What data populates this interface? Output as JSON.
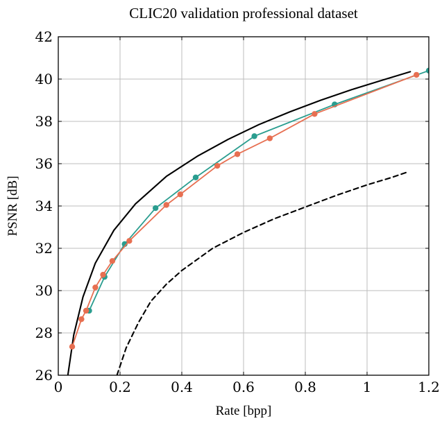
{
  "chart_data": {
    "type": "line",
    "title": "CLIC20 validation professional dataset",
    "xlabel": "Rate [bpp]",
    "ylabel": "PSNR [dB]",
    "xlim": [
      0,
      1.2
    ],
    "ylim": [
      26,
      42
    ],
    "x_ticks": [
      "0",
      "0.2",
      "0.4",
      "0.6",
      "0.8",
      "1",
      "1.2"
    ],
    "y_ticks": [
      "26",
      "28",
      "30",
      "32",
      "34",
      "36",
      "38",
      "40",
      "42"
    ],
    "grid": true,
    "legend": "none",
    "series": [
      {
        "style": "solid",
        "color": "#000000",
        "markers": false,
        "x": [
          0.03,
          0.05,
          0.08,
          0.12,
          0.18,
          0.25,
          0.35,
          0.45,
          0.55,
          0.65,
          0.75,
          0.85,
          0.95,
          1.05,
          1.14
        ],
        "y": [
          25.9,
          27.9,
          29.7,
          31.3,
          32.85,
          34.1,
          35.4,
          36.35,
          37.15,
          37.85,
          38.45,
          39.0,
          39.5,
          39.95,
          40.35
        ]
      },
      {
        "style": "dashed",
        "color": "#000000",
        "markers": false,
        "x": [
          0.19,
          0.22,
          0.26,
          0.3,
          0.35,
          0.4,
          0.5,
          0.6,
          0.7,
          0.8,
          0.9,
          1.0,
          1.08,
          1.13
        ],
        "y": [
          26.0,
          27.3,
          28.5,
          29.5,
          30.3,
          30.95,
          32.0,
          32.75,
          33.4,
          33.95,
          34.5,
          35.0,
          35.35,
          35.6
        ]
      },
      {
        "style": "solid",
        "color": "#2a9d8f",
        "markers": true,
        "x": [
          0.1,
          0.15,
          0.215,
          0.315,
          0.445,
          0.635,
          0.895,
          1.2
        ],
        "y": [
          29.05,
          30.65,
          32.2,
          33.9,
          35.35,
          37.3,
          38.8,
          40.4
        ]
      },
      {
        "style": "solid",
        "color": "#e76f51",
        "markers": true,
        "x": [
          0.045,
          0.075,
          0.09,
          0.12,
          0.145,
          0.175,
          0.23,
          0.35,
          0.395,
          0.515,
          0.58,
          0.685,
          0.83,
          1.16
        ],
        "y": [
          27.35,
          28.65,
          29.05,
          30.15,
          30.75,
          31.4,
          32.35,
          34.05,
          34.55,
          35.9,
          36.45,
          37.2,
          38.35,
          40.2
        ]
      }
    ]
  }
}
